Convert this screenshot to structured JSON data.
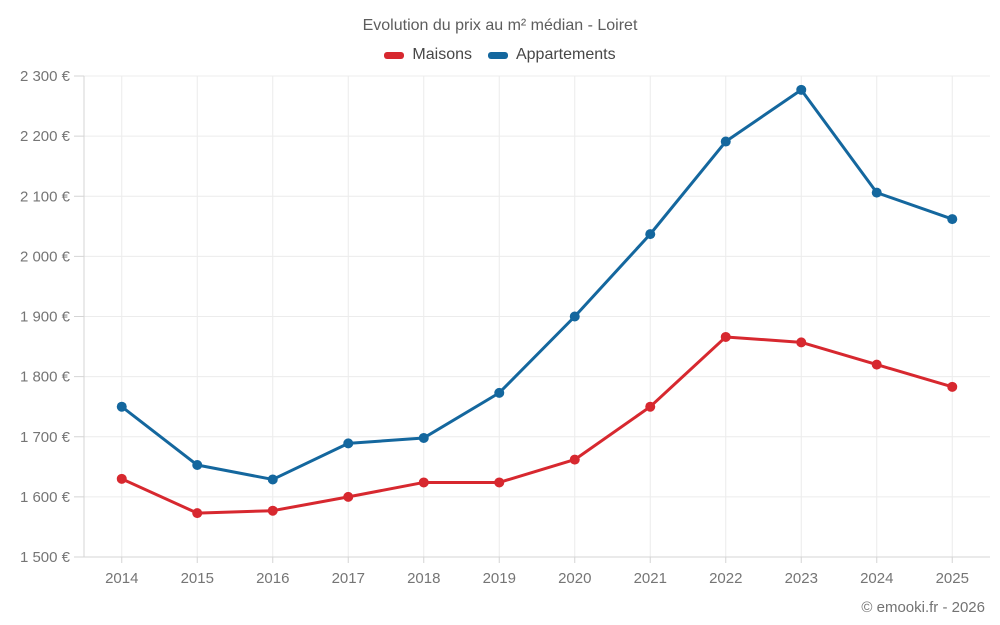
{
  "chart_data": {
    "type": "line",
    "title": "Evolution du prix au m² médian - Loiret",
    "x": [
      "2014",
      "2015",
      "2016",
      "2017",
      "2018",
      "2019",
      "2020",
      "2021",
      "2022",
      "2023",
      "2024",
      "2025"
    ],
    "series": [
      {
        "name": "Maisons",
        "color": "#d7282f",
        "values": [
          1630,
          1573,
          1577,
          1600,
          1624,
          1624,
          1662,
          1750,
          1866,
          1857,
          1820,
          1783
        ]
      },
      {
        "name": "Appartements",
        "color": "#14679e",
        "values": [
          1750,
          1653,
          1629,
          1689,
          1698,
          1773,
          1900,
          2037,
          2191,
          2277,
          2106,
          2062
        ]
      }
    ],
    "ylim": [
      1500,
      2300
    ],
    "ytick_step": 100,
    "y_suffix": " €",
    "grid": true,
    "legend_position": "top",
    "ylabel": "",
    "xlabel": ""
  },
  "footer": {
    "copyright": "© emooki.fr - 2026"
  }
}
